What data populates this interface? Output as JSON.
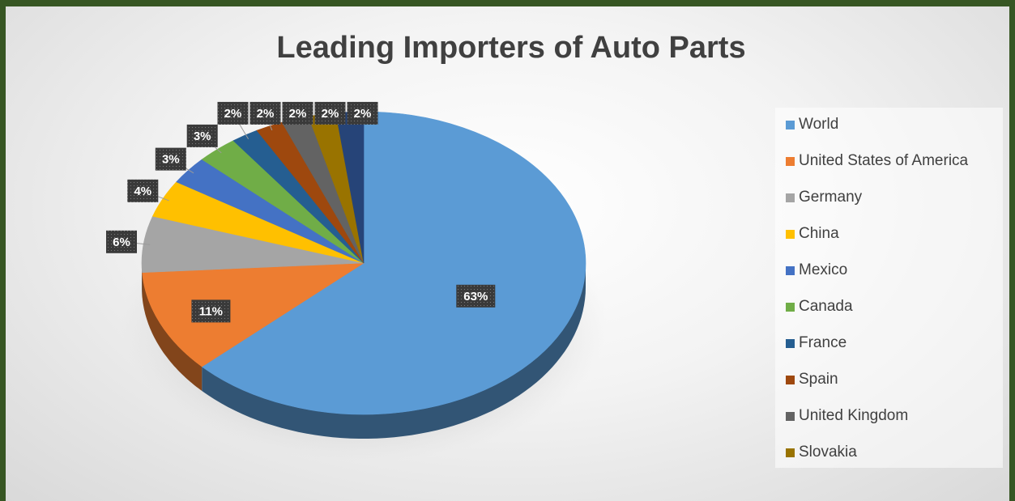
{
  "chart_data": {
    "type": "pie",
    "title": "Leading Importers of Auto Parts",
    "categories": [
      "World",
      "United States of America",
      "Germany",
      "China",
      "Mexico",
      "Canada",
      "France",
      "Spain",
      "United Kingdom",
      "Slovakia",
      ""
    ],
    "values": [
      63,
      11,
      6,
      4,
      3,
      3,
      2,
      2,
      2,
      2,
      2
    ],
    "labels": [
      "63%",
      "11%",
      "6%",
      "4%",
      "3%",
      "3%",
      "2%",
      "2%",
      "2%",
      "2%",
      "2%"
    ],
    "colors": [
      "#5b9bd5",
      "#ed7d31",
      "#a5a5a5",
      "#ffc000",
      "#4472c4",
      "#70ad47",
      "#255e91",
      "#9e480e",
      "#636363",
      "#997300",
      "#264478"
    ],
    "legend": "right",
    "style": "3d"
  }
}
